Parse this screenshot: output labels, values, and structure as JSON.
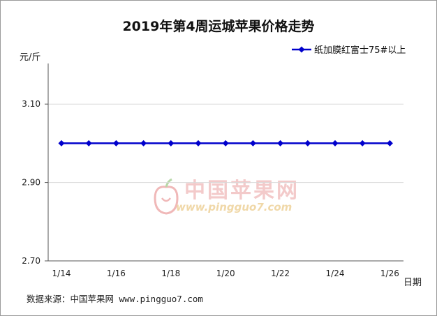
{
  "chart_data": {
    "type": "line",
    "title": "2019年第4周运城苹果价格走势",
    "ylabel": "元/斤",
    "xlabel": "日期",
    "ylim": [
      2.7,
      3.2
    ],
    "yticks": [
      "2.70",
      "2.90",
      "3.10"
    ],
    "x": [
      "1/14",
      "1/15",
      "1/16",
      "1/17",
      "1/18",
      "1/19",
      "1/20",
      "1/21",
      "1/22",
      "1/23",
      "1/24",
      "1/25",
      "1/26"
    ],
    "xtick_labels": [
      "1/14",
      "1/16",
      "1/18",
      "1/20",
      "1/22",
      "1/24",
      "1/26"
    ],
    "grid": true,
    "legend": "top-right",
    "series": [
      {
        "name": "纸加膜红富士75#以上",
        "color": "#0000cc",
        "values": [
          3.0,
          3.0,
          3.0,
          3.0,
          3.0,
          3.0,
          3.0,
          3.0,
          3.0,
          3.0,
          3.0,
          3.0,
          3.0
        ]
      }
    ]
  },
  "watermark": {
    "text": "中国苹果网",
    "url": "www.pingguo7.com"
  },
  "source": "数据来源：中国苹果网 www.pingguo7.com"
}
